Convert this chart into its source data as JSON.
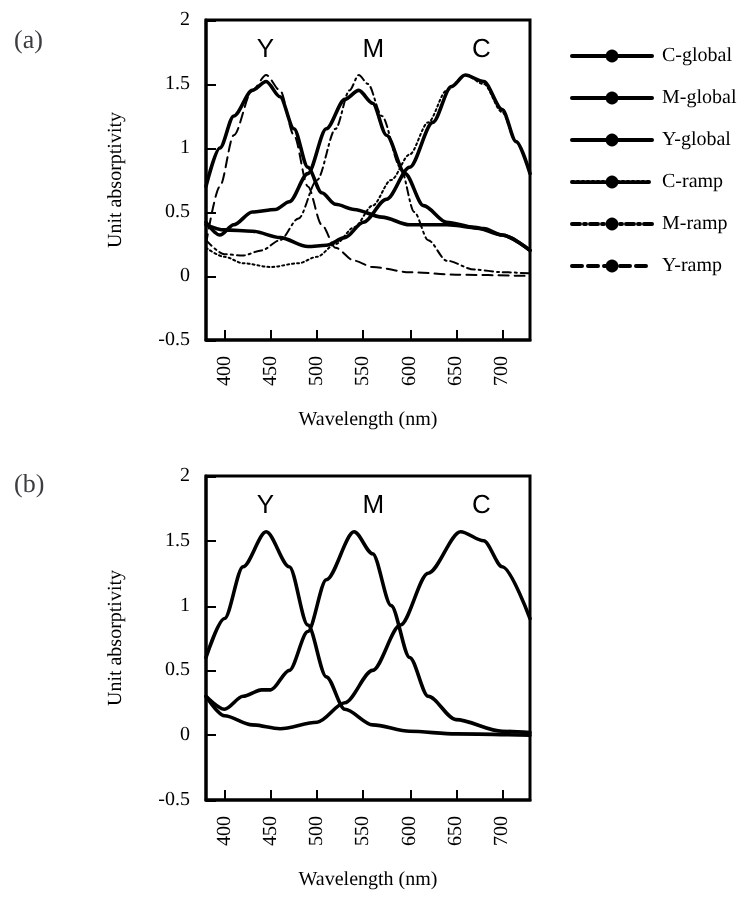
{
  "chart_data": [
    {
      "type": "line",
      "title": "(a)",
      "xlabel": "Wavelength (nm)",
      "ylabel": "Unit absorptivity",
      "xlim": [
        380,
        730
      ],
      "xticks": [
        400,
        450,
        500,
        550,
        600,
        650,
        700
      ],
      "ylim": [
        -0.5,
        2
      ],
      "yticks": [
        -0.5,
        0,
        0.5,
        1,
        1.5,
        2
      ],
      "grid": false,
      "legend": "right",
      "marker": "none",
      "annotations": [
        "Y",
        "M",
        "C"
      ],
      "series": [
        {
          "name": "C-global",
          "color": "#000000",
          "line_style": "solid",
          "x": [
            380,
            400,
            430,
            460,
            490,
            510,
            530,
            550,
            575,
            600,
            625,
            645,
            660,
            680,
            700,
            715,
            730
          ],
          "values": [
            0.4,
            0.36,
            0.35,
            0.3,
            0.23,
            0.24,
            0.3,
            0.42,
            0.6,
            0.85,
            1.2,
            1.48,
            1.57,
            1.52,
            1.3,
            1.05,
            0.8
          ]
        },
        {
          "name": "M-global",
          "color": "#000000",
          "line_style": "solid",
          "x": [
            380,
            395,
            410,
            430,
            455,
            470,
            490,
            510,
            530,
            545,
            560,
            575,
            595,
            615,
            640,
            670,
            700,
            730
          ],
          "values": [
            0.42,
            0.32,
            0.4,
            0.5,
            0.52,
            0.58,
            0.8,
            1.15,
            1.38,
            1.45,
            1.35,
            1.1,
            0.8,
            0.55,
            0.42,
            0.38,
            0.32,
            0.2
          ]
        },
        {
          "name": "Y-global",
          "color": "#000000",
          "line_style": "solid",
          "x": [
            380,
            395,
            410,
            430,
            445,
            460,
            475,
            490,
            505,
            520,
            540,
            570,
            600,
            640,
            680,
            700,
            730
          ],
          "values": [
            0.7,
            1.0,
            1.25,
            1.45,
            1.52,
            1.4,
            1.15,
            0.85,
            0.65,
            0.56,
            0.52,
            0.46,
            0.4,
            0.4,
            0.37,
            0.32,
            0.2
          ]
        },
        {
          "name": "C-ramp",
          "color": "#000000",
          "line_style": "dotted",
          "x": [
            380,
            400,
            420,
            450,
            480,
            500,
            520,
            540,
            560,
            580,
            600,
            620,
            640,
            660,
            680,
            700,
            715,
            730
          ],
          "values": [
            0.22,
            0.15,
            0.1,
            0.07,
            0.1,
            0.15,
            0.25,
            0.38,
            0.55,
            0.75,
            0.95,
            1.2,
            1.45,
            1.57,
            1.5,
            1.28,
            1.05,
            0.8
          ]
        },
        {
          "name": "M-ramp",
          "color": "#000000",
          "line_style": "dashdot",
          "x": [
            380,
            400,
            420,
            440,
            460,
            480,
            500,
            520,
            535,
            545,
            555,
            570,
            590,
            605,
            620,
            640,
            670,
            700,
            730
          ],
          "values": [
            0.28,
            0.17,
            0.16,
            0.2,
            0.28,
            0.45,
            0.75,
            1.15,
            1.45,
            1.57,
            1.5,
            1.25,
            0.85,
            0.5,
            0.28,
            0.12,
            0.05,
            0.03,
            0.02
          ]
        },
        {
          "name": "Y-ramp",
          "color": "#000000",
          "line_style": "dashed",
          "x": [
            380,
            395,
            410,
            430,
            445,
            460,
            475,
            490,
            505,
            520,
            540,
            560,
            600,
            650,
            730
          ],
          "values": [
            0.25,
            0.7,
            1.1,
            1.45,
            1.57,
            1.45,
            1.1,
            0.7,
            0.4,
            0.22,
            0.12,
            0.07,
            0.03,
            0.01,
            0
          ]
        }
      ]
    },
    {
      "type": "line",
      "title": "(b)",
      "xlabel": "Wavelength (nm)",
      "ylabel": "Unit absorptivity",
      "xlim": [
        380,
        730
      ],
      "xticks": [
        400,
        450,
        500,
        550,
        600,
        650,
        700
      ],
      "ylim": [
        -0.5,
        2
      ],
      "yticks": [
        -0.5,
        0,
        0.5,
        1,
        1.5,
        2
      ],
      "grid": false,
      "marker": "none",
      "annotations": [
        "Y",
        "M",
        "C"
      ],
      "series": [
        {
          "color": "#000000",
          "line_style": "solid",
          "x": [
            380,
            400,
            420,
            445,
            470,
            490,
            510,
            530,
            560,
            600,
            650,
            730
          ],
          "values": [
            0.6,
            0.9,
            1.3,
            1.57,
            1.3,
            0.85,
            0.45,
            0.2,
            0.08,
            0.03,
            0.01,
            0
          ]
        },
        {
          "color": "#000000",
          "line_style": "solid",
          "x": [
            380,
            400,
            420,
            440,
            450,
            470,
            490,
            510,
            540,
            560,
            580,
            600,
            620,
            650,
            700,
            730
          ],
          "values": [
            0.3,
            0.2,
            0.3,
            0.35,
            0.35,
            0.5,
            0.8,
            1.2,
            1.57,
            1.4,
            1.0,
            0.6,
            0.3,
            0.12,
            0.03,
            0.02
          ]
        },
        {
          "color": "#000000",
          "line_style": "solid",
          "x": [
            380,
            400,
            430,
            460,
            500,
            530,
            560,
            590,
            620,
            655,
            680,
            700,
            730
          ],
          "values": [
            0.3,
            0.15,
            0.08,
            0.05,
            0.1,
            0.25,
            0.5,
            0.85,
            1.25,
            1.57,
            1.5,
            1.3,
            0.9
          ]
        }
      ]
    }
  ]
}
